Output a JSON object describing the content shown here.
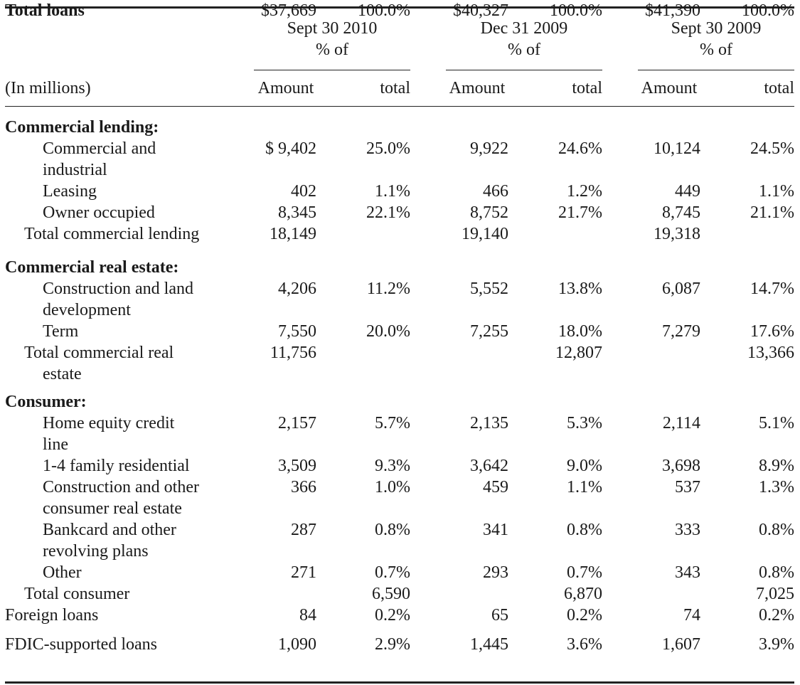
{
  "header": {
    "unit_label": "(In millions)",
    "groups": [
      {
        "period": "Sept 30 2010",
        "pct_caption": "% of",
        "col_amount": "Amount",
        "col_total": "total"
      },
      {
        "period": "Dec 31 2009",
        "pct_caption": "% of",
        "col_amount": "Amount",
        "col_total": "total"
      },
      {
        "period": "Sept 30 2009",
        "pct_caption": "% of",
        "col_amount": "Amount",
        "col_total": "total"
      }
    ]
  },
  "rows": [
    {
      "kind": "section",
      "label": "Commercial lending:"
    },
    {
      "kind": "item",
      "label": [
        "Commercial and",
        "industrial"
      ],
      "cells": [
        [
          "$ 9,402",
          "25.0%"
        ],
        [
          "9,922",
          "24.6%"
        ],
        [
          "10,124",
          "24.5%"
        ]
      ]
    },
    {
      "kind": "item",
      "label": [
        "Leasing"
      ],
      "cells": [
        [
          "402",
          "1.1%"
        ],
        [
          "466",
          "1.2%"
        ],
        [
          "449",
          "1.1%"
        ]
      ]
    },
    {
      "kind": "item",
      "label": [
        "Owner occupied"
      ],
      "cells": [
        [
          "8,345",
          "22.1%"
        ],
        [
          "8,752",
          "21.7%"
        ],
        [
          "8,745",
          "21.1%"
        ]
      ]
    },
    {
      "kind": "subtotal",
      "label": [
        "Total commercial lending"
      ],
      "cells": [
        [
          "18,149",
          ""
        ],
        [
          "19,140",
          ""
        ],
        [
          "19,318",
          ""
        ]
      ]
    },
    {
      "kind": "section",
      "label": "Commercial real estate:"
    },
    {
      "kind": "item",
      "label": [
        "Construction and land",
        "development"
      ],
      "cells": [
        [
          "4,206",
          "11.2%"
        ],
        [
          "5,552",
          "13.8%"
        ],
        [
          "6,087",
          "14.7%"
        ]
      ]
    },
    {
      "kind": "item",
      "label": [
        "Term"
      ],
      "cells": [
        [
          "7,550",
          "20.0%"
        ],
        [
          "7,255",
          "18.0%"
        ],
        [
          "7,279",
          "17.6%"
        ]
      ]
    },
    {
      "kind": "subtotal",
      "label": [
        "Total commercial real",
        "estate"
      ],
      "cells": [
        [
          "11,756",
          ""
        ],
        [
          "",
          "12,807"
        ],
        [
          "",
          "13,366"
        ]
      ]
    },
    {
      "kind": "section",
      "label": "Consumer:"
    },
    {
      "kind": "item",
      "label": [
        "Home equity credit",
        "line"
      ],
      "cells": [
        [
          "2,157",
          "5.7%"
        ],
        [
          "2,135",
          "5.3%"
        ],
        [
          "2,114",
          "5.1%"
        ]
      ]
    },
    {
      "kind": "item",
      "label": [
        "1-4 family residential"
      ],
      "cells": [
        [
          "3,509",
          "9.3%"
        ],
        [
          "3,642",
          "9.0%"
        ],
        [
          "3,698",
          "8.9%"
        ]
      ]
    },
    {
      "kind": "item",
      "label": [
        "Construction and other",
        "consumer real estate"
      ],
      "cells": [
        [
          "366",
          "1.0%"
        ],
        [
          "459",
          "1.1%"
        ],
        [
          "537",
          "1.3%"
        ]
      ]
    },
    {
      "kind": "item",
      "label": [
        "Bankcard and other",
        "revolving plans"
      ],
      "cells": [
        [
          "287",
          "0.8%"
        ],
        [
          "341",
          "0.8%"
        ],
        [
          "333",
          "0.8%"
        ]
      ]
    },
    {
      "kind": "item",
      "label": [
        "Other"
      ],
      "cells": [
        [
          "271",
          "0.7%"
        ],
        [
          "293",
          "0.7%"
        ],
        [
          "343",
          "0.8%"
        ]
      ]
    },
    {
      "kind": "subtotal",
      "label": [
        "Total consumer"
      ],
      "cells": [
        [
          "",
          "6,590"
        ],
        [
          "",
          "6,870"
        ],
        [
          "",
          "7,025"
        ]
      ]
    },
    {
      "kind": "top",
      "label": [
        "Foreign loans"
      ],
      "cells": [
        [
          "84",
          "0.2%"
        ],
        [
          "65",
          "0.2%"
        ],
        [
          "74",
          "0.2%"
        ]
      ]
    },
    {
      "kind": "top",
      "label": [
        "FDIC-supported loans"
      ],
      "cells": [
        [
          "1,090",
          "2.9%"
        ],
        [
          "1,445",
          "3.6%"
        ],
        [
          "1,607",
          "3.9%"
        ]
      ]
    },
    {
      "kind": "grand",
      "label": [
        "Total loans"
      ],
      "cells": [
        [
          "$37,669",
          "100.0%"
        ],
        [
          "$40,327",
          "100.0%"
        ],
        [
          "$41,390",
          "100.0%"
        ]
      ]
    }
  ]
}
